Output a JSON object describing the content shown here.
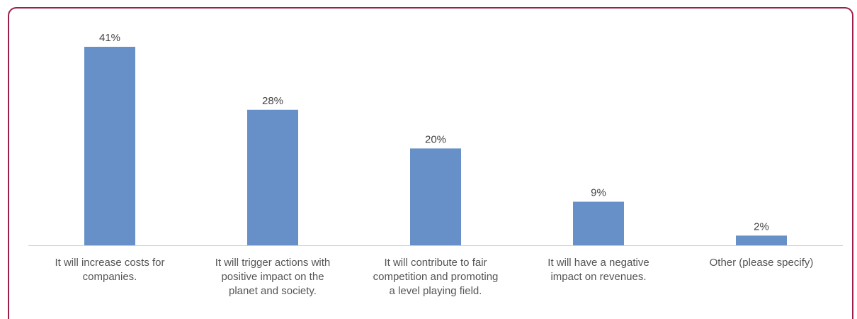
{
  "chart_data": {
    "type": "bar",
    "categories": [
      [
        "It will increase costs for",
        "companies."
      ],
      [
        "It will trigger actions with",
        "positive impact on the",
        "planet and society."
      ],
      [
        "It will contribute to fair",
        "competition and promoting",
        "a level playing field."
      ],
      [
        "It will have a negative",
        "impact on revenues."
      ],
      [
        "Other (please specify)"
      ]
    ],
    "values": [
      41,
      28,
      20,
      9,
      2
    ],
    "data_labels": [
      "41%",
      "28%",
      "20%",
      "9%",
      "2%"
    ],
    "ylim": [
      0,
      41
    ],
    "grid": false,
    "colors": {
      "bar": "#6690c7",
      "axis": "#d0d0d0",
      "border": "#9c1f4a"
    }
  }
}
